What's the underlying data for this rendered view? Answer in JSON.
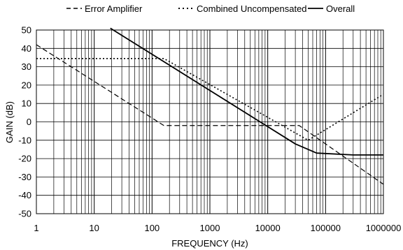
{
  "chart_data": {
    "type": "line",
    "title": "",
    "xlabel": "FREQUENCY (Hz)",
    "ylabel": "GAIN (dB)",
    "xscale": "log",
    "xlim": [
      1,
      1000000
    ],
    "ylim": [
      -50,
      50
    ],
    "x_tick_labels": [
      "1",
      "10",
      "100",
      "1000",
      "10000",
      "100000",
      "1000000"
    ],
    "y_tick_labels": [
      "50",
      "40",
      "30",
      "20",
      "10",
      "0",
      "-10",
      "-20",
      "-30",
      "-40",
      "-50"
    ],
    "grid": true,
    "legend_position": "top",
    "series": [
      {
        "name": "Error Amplifier",
        "style": "dashed",
        "color": "#000000",
        "points": [
          [
            1,
            42
          ],
          [
            160,
            -2
          ],
          [
            35000,
            -2
          ],
          [
            1000000,
            -34
          ]
        ]
      },
      {
        "name": "Combined Uncompensated",
        "style": "dotted",
        "color": "#000000",
        "points": [
          [
            1,
            34.5
          ],
          [
            160,
            34.5
          ],
          [
            50000,
            -10
          ],
          [
            1000000,
            15
          ]
        ]
      },
      {
        "name": "Overall",
        "style": "solid",
        "color": "#000000",
        "points": [
          [
            19,
            51
          ],
          [
            30000,
            -12
          ],
          [
            70000,
            -17
          ],
          [
            300000,
            -18
          ],
          [
            1000000,
            -18
          ]
        ]
      }
    ]
  }
}
